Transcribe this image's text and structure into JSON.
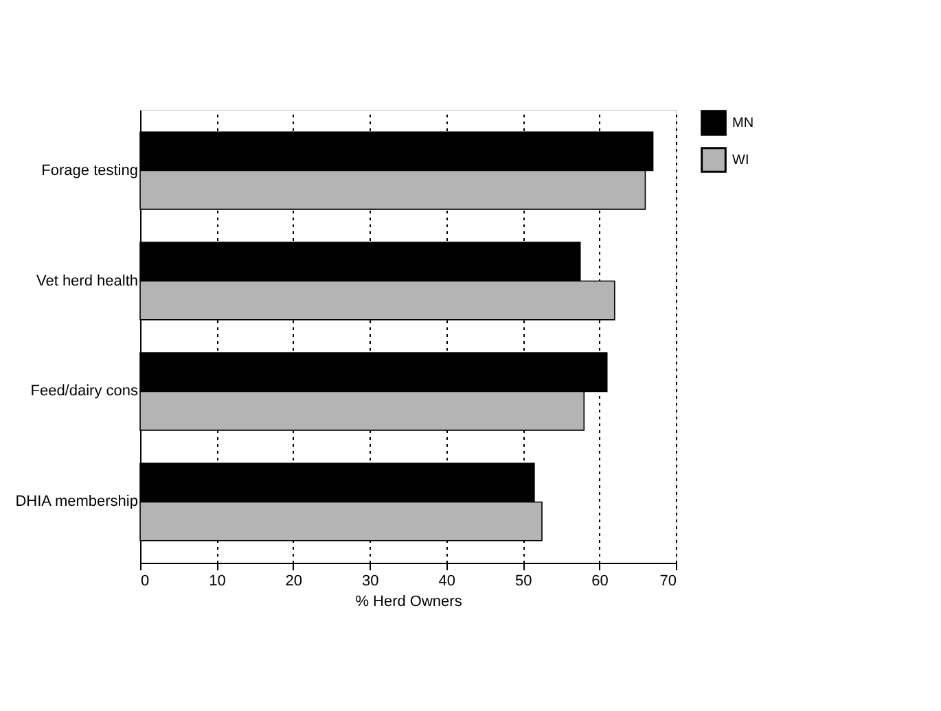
{
  "chart_data": {
    "type": "bar",
    "orientation": "horizontal",
    "xlabel": "%  Herd Owners",
    "categories": [
      "Forage testing",
      "Vet herd health",
      "Feed/dairy cons",
      "DHIA membership"
    ],
    "series": [
      {
        "name": "MN",
        "color": "#000000",
        "values": [
          67,
          57.5,
          61,
          51.5
        ]
      },
      {
        "name": "WI",
        "color": "#b4b4b4",
        "values": [
          66,
          62,
          58,
          52.5
        ]
      }
    ],
    "xlim": [
      0,
      70
    ],
    "xticks": [
      0,
      10,
      20,
      30,
      40,
      50,
      60,
      70
    ],
    "grid": "x",
    "legend": "right"
  }
}
